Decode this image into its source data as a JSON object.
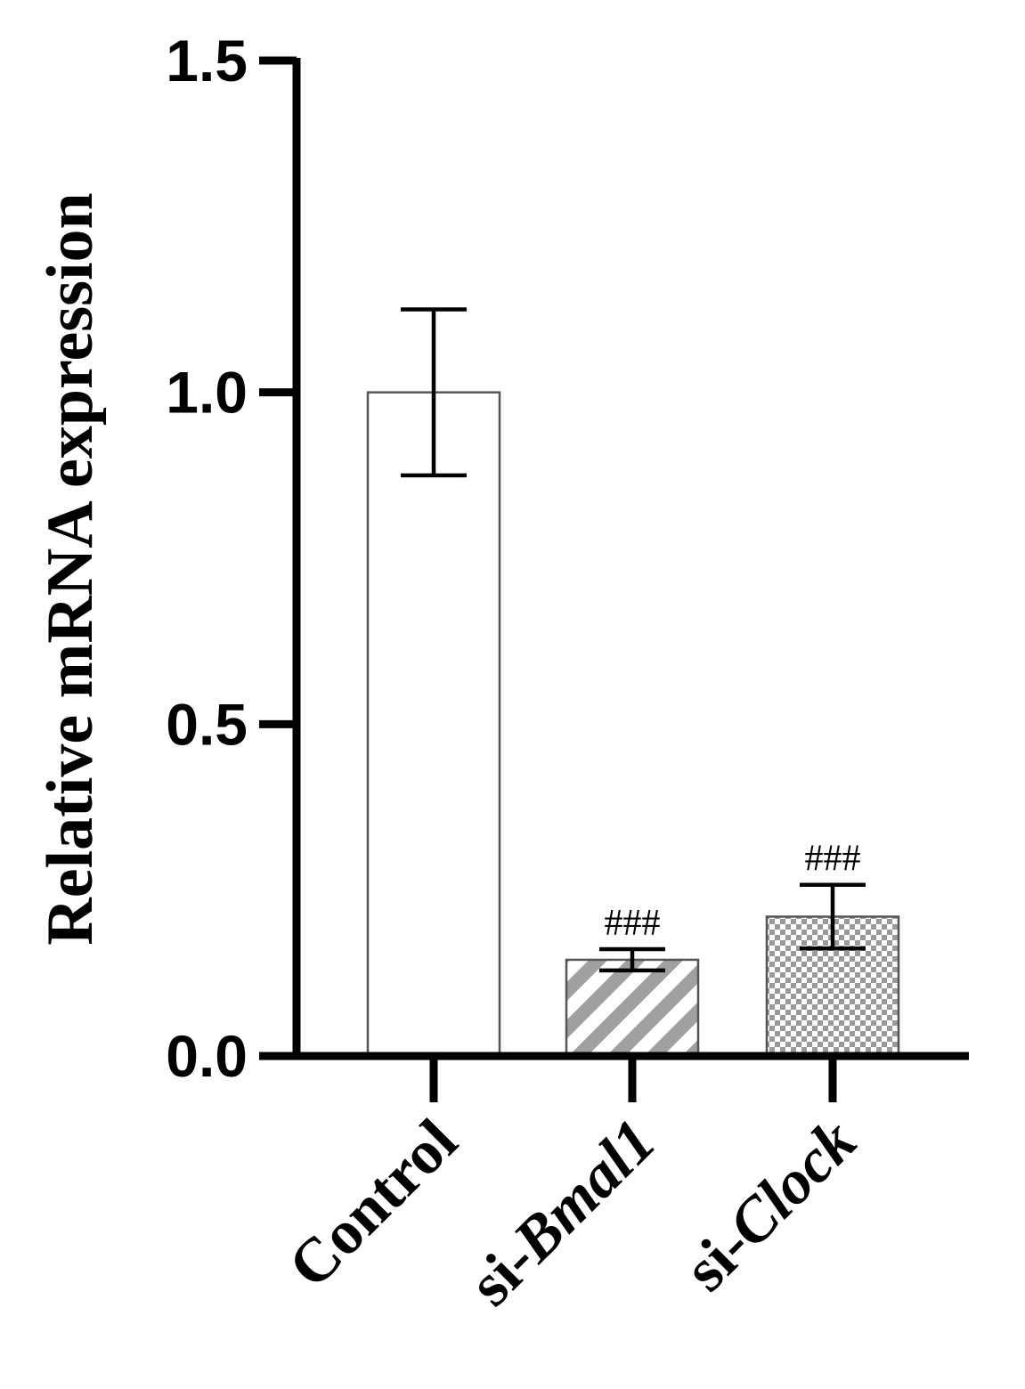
{
  "chart_data": {
    "type": "bar",
    "ylabel": "Relative mRNA expression",
    "ylim": [
      0,
      1.5
    ],
    "yticks": [
      "0.0",
      "0.5",
      "1.0",
      "1.5"
    ],
    "ytick_values": [
      0,
      0.5,
      1.0,
      1.5
    ],
    "categories": [
      {
        "prefix": "",
        "italic": "",
        "full": "Control"
      },
      {
        "prefix": "si-",
        "italic": "Bmal1",
        "full": "si-Bmal1"
      },
      {
        "prefix": "si-",
        "italic": "Clock",
        "full": "si-Clock"
      }
    ],
    "values": [
      1.0,
      0.145,
      0.21
    ],
    "error_upper": [
      1.125,
      0.161,
      0.258
    ],
    "error_lower": [
      0.875,
      0.129,
      0.162
    ],
    "annotations": [
      "",
      "###",
      "###"
    ],
    "fills": [
      "white",
      "diagonal-stripes",
      "checkerboard"
    ],
    "colors": {
      "stroke": "#000000",
      "bar_stroke": "#555555",
      "pattern": "#999999"
    }
  }
}
